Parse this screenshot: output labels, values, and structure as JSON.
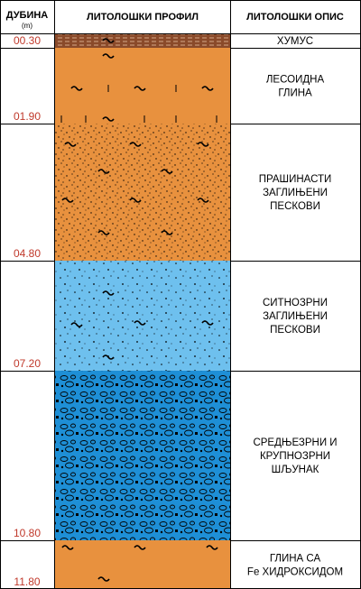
{
  "header": {
    "depth": "ДУБИНА",
    "depth_unit": "(m)",
    "profile": "ЛИТОЛОШКИ ПРОФИЛ",
    "description": "ЛИТОЛОШКИ ОПИС"
  },
  "layers": [
    {
      "depth": "00.30",
      "description": [
        "ХУМУС"
      ]
    },
    {
      "depth": "01.90",
      "description": [
        "ЛЕСОИДНА",
        "ГЛИНА"
      ]
    },
    {
      "depth": "04.80",
      "description": [
        "ПРАШИНАСТИ",
        "ЗАГЛИЊЕНИ",
        "ПЕСКОВИ"
      ]
    },
    {
      "depth": "07.20",
      "description": [
        "СИТНОЗРНИ",
        "ЗАГЛИЊЕНИ",
        "ПЕСКОВИ"
      ]
    },
    {
      "depth": "10.80",
      "description": [
        "СРЕДЊЕЗРНИ И",
        "КРУПНОЗРНИ",
        "ШЉУНАК"
      ]
    },
    {
      "depth": "11.80",
      "description": [
        "ГЛИНА СА",
        "Fe ХИДРОКСИДОМ"
      ]
    }
  ]
}
